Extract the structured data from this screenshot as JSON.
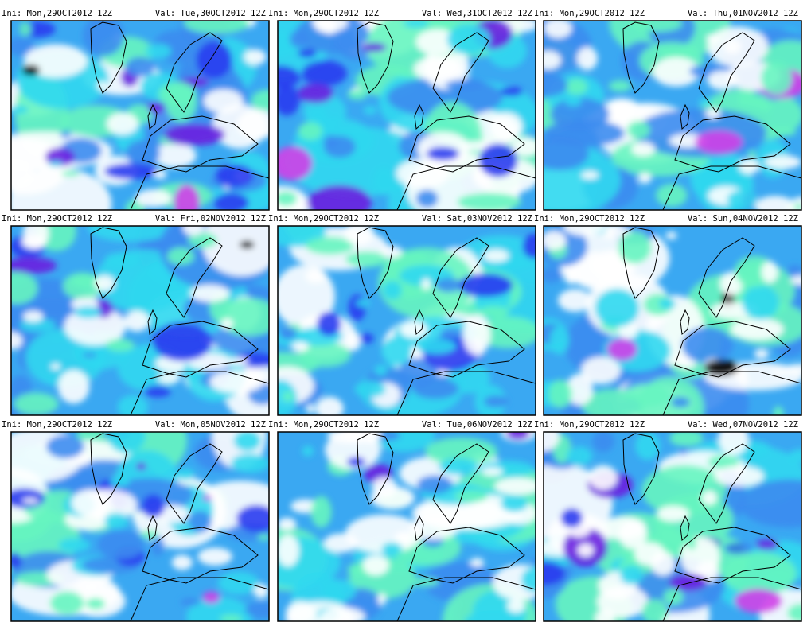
{
  "panels": [
    {
      "init": "Ini: Mon,29OCT2012 12Z",
      "valid": "Val: Tue,30OCT2012 12Z"
    },
    {
      "init": "Ini: Mon,29OCT2012 12Z",
      "valid": "Val: Wed,31OCT2012 12Z"
    },
    {
      "init": "Ini: Mon,29OCT2012 12Z",
      "valid": "Val: Thu,01NOV2012 12Z"
    },
    {
      "init": "Ini: Mon,29OCT2012 12Z",
      "valid": "Val: Fri,02NOV2012 12Z"
    },
    {
      "init": "Ini: Mon,29OCT2012 12Z",
      "valid": "Val: Sat,03NOV2012 12Z"
    },
    {
      "init": "Ini: Mon,29OCT2012 12Z",
      "valid": "Val: Sun,04NOV2012 12Z"
    },
    {
      "init": "Ini: Mon,29OCT2012 12Z",
      "valid": "Val: Mon,05NOV2012 12Z"
    },
    {
      "init": "Ini: Mon,29OCT2012 12Z",
      "valid": "Val: Tue,06NOV2012 12Z"
    },
    {
      "init": "Ini: Mon,29OCT2012 12Z",
      "valid": "Val: Wed,07NOV2012 12Z"
    }
  ]
}
